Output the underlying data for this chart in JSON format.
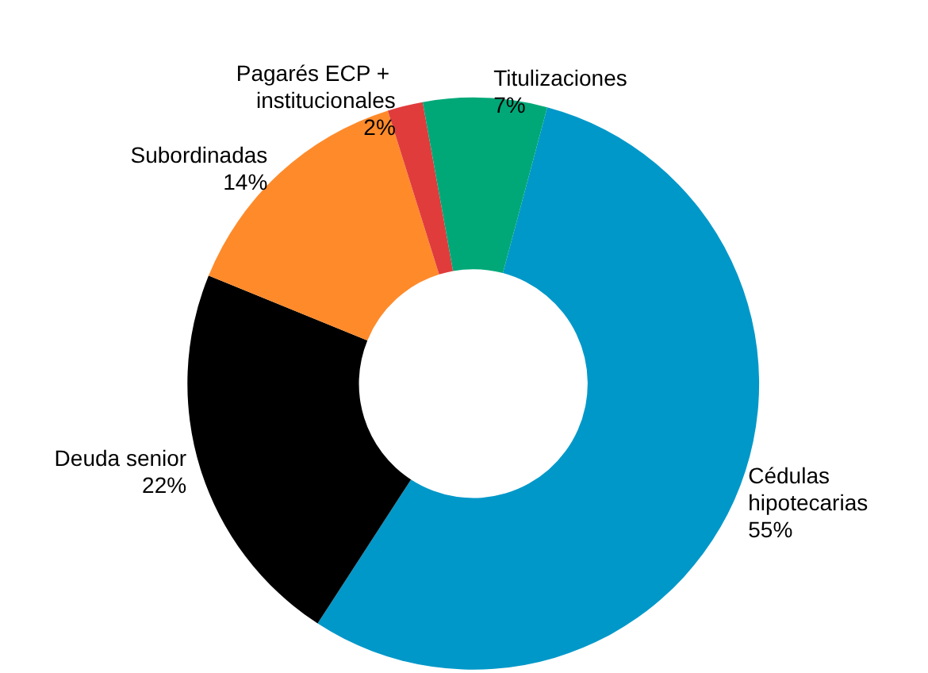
{
  "chart_data": {
    "type": "donut",
    "categories": [
      "Cédulas hipotecarias",
      "Deuda senior",
      "Subordinadas",
      "Pagarés ECP + institucionales",
      "Titulizaciones"
    ],
    "values": [
      55,
      22,
      14,
      2,
      7
    ],
    "colors": [
      "#0098c9",
      "#000000",
      "#ff8a2a",
      "#e03c3c",
      "#00a878"
    ],
    "value_labels": [
      "55%",
      "22%",
      "14%",
      "2%",
      "7%"
    ]
  }
}
